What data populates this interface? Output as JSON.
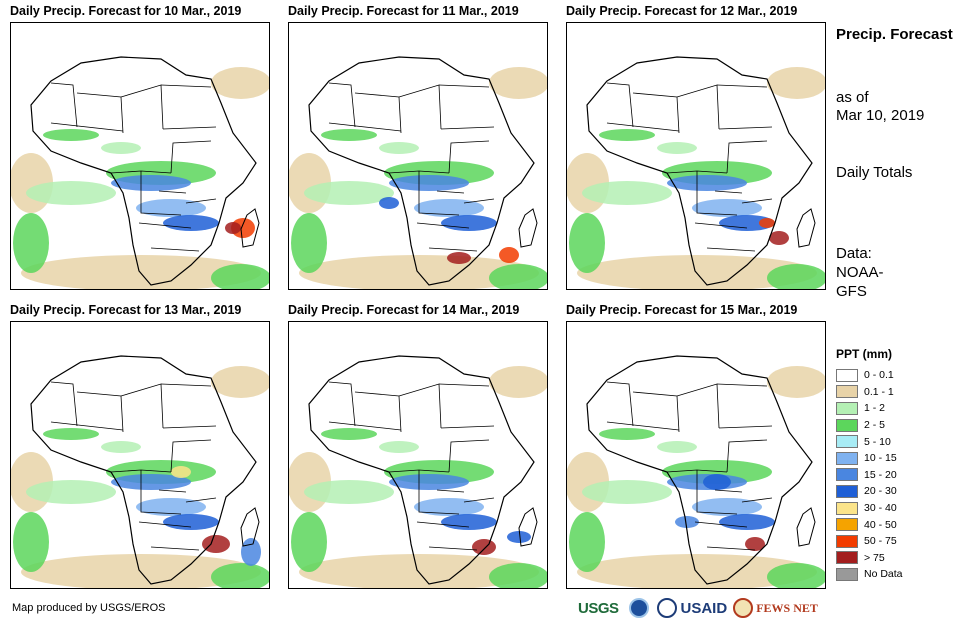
{
  "panels": [
    {
      "title": "Daily Precip. Forecast for 10 Mar., 2019"
    },
    {
      "title": "Daily Precip. Forecast for 11 Mar., 2019"
    },
    {
      "title": "Daily Precip. Forecast for 12 Mar., 2019"
    },
    {
      "title": "Daily Precip. Forecast for 13 Mar., 2019"
    },
    {
      "title": "Daily Precip. Forecast for 14 Mar., 2019"
    },
    {
      "title": "Daily Precip. Forecast for 15 Mar., 2019"
    }
  ],
  "side": {
    "title": "Precip. Forecast",
    "as_of_label": "as of",
    "date": "Mar 10, 2019",
    "totals": "Daily Totals",
    "data_label": "Data:",
    "data_source": "NOAA-GFS"
  },
  "legend": {
    "title": "PPT (mm)",
    "items": [
      {
        "label": "0 - 0.1",
        "color": "#ffffff"
      },
      {
        "label": "0.1 - 1",
        "color": "#e8d3a8"
      },
      {
        "label": "1 - 2",
        "color": "#b4f0b4"
      },
      {
        "label": "2 - 5",
        "color": "#5cd65c"
      },
      {
        "label": "5 - 10",
        "color": "#a8ecf5"
      },
      {
        "label": "10 - 15",
        "color": "#7fb2f0"
      },
      {
        "label": "15 - 20",
        "color": "#4a86e0"
      },
      {
        "label": "20 - 30",
        "color": "#1f5fd6"
      },
      {
        "label": "30 - 40",
        "color": "#fbe48a"
      },
      {
        "label": "40 - 50",
        "color": "#f5a300"
      },
      {
        "label": "50 - 75",
        "color": "#f23c00"
      },
      {
        "label": "> 75",
        "color": "#a31e1e"
      },
      {
        "label": "No Data",
        "color": "#999999"
      }
    ]
  },
  "footer": {
    "credit": "Map produced by USGS/EROS"
  },
  "logos": {
    "usgs": "USGS",
    "usaid": "USAID",
    "fews": "FEWS NET"
  }
}
